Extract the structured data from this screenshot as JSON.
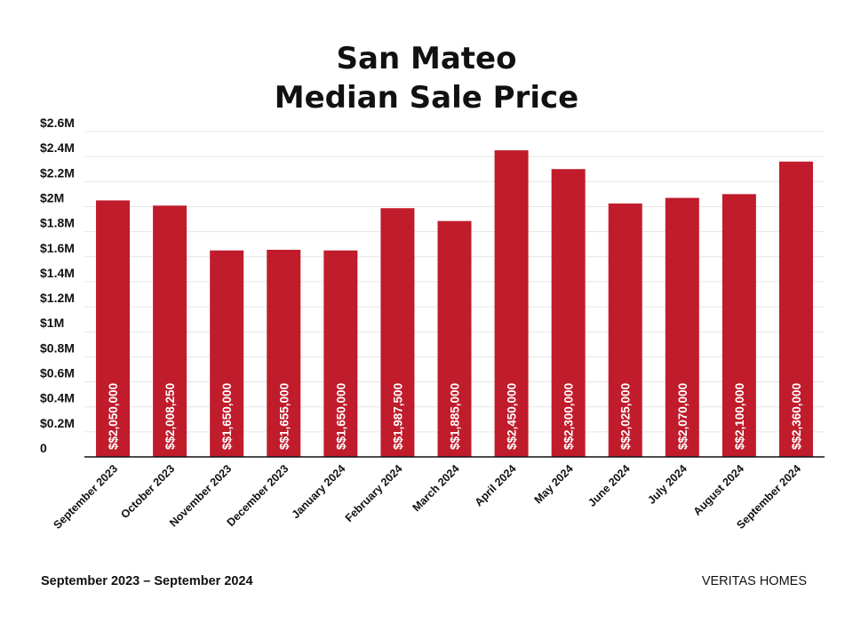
{
  "chart_data": {
    "type": "bar",
    "title_lines": [
      "San Mateo",
      "Median Sale Price"
    ],
    "categories": [
      "September 2023",
      "October 2023",
      "November 2023",
      "December 2023",
      "January 2024",
      "February 2024",
      "March 2024",
      "April 2024",
      "May 2024",
      "June 2024",
      "July 2024",
      "August 2024",
      "September 2024"
    ],
    "values": [
      2050000,
      2008250,
      1650000,
      1655000,
      1650000,
      1987500,
      1885000,
      2450000,
      2300000,
      2025000,
      2070000,
      2100000,
      2360000
    ],
    "data_labels": [
      "$$2,050,000",
      "$$2,008,250",
      "$$1,650,000",
      "$$1,655,000",
      "$$1,650,000",
      "$$1,987,500",
      "$$1,885,000",
      "$$2,450,000",
      "$$2,300,000",
      "$$2,025,000",
      "$$2,070,000",
      "$$2,100,000",
      "$$2,360,000"
    ],
    "y_ticks": [
      0,
      200000,
      400000,
      600000,
      800000,
      1000000,
      1200000,
      1400000,
      1600000,
      1800000,
      2000000,
      2200000,
      2400000,
      2600000
    ],
    "y_tick_labels": [
      "0",
      "$0.2M",
      "$0.4M",
      "$0.6M",
      "$0.8M",
      "$1M",
      "$1.2M",
      "$1.4M",
      "$1.6M",
      "$1.8M",
      "$2M",
      "$2.2M",
      "$2.4M",
      "$2.6M"
    ],
    "ylim": [
      0,
      2600000
    ],
    "grid": true,
    "bar_color": "#c01c2c",
    "gridline_color": "#e6e6e6",
    "legend": "none"
  },
  "footer": {
    "date_range": "September 2023 – September 2024",
    "brand": "VERITAS HOMES"
  }
}
